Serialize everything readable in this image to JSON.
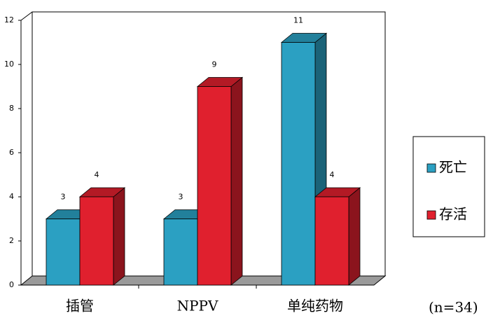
{
  "chart_data": {
    "type": "bar3d",
    "categories": [
      "插管",
      "NPPV",
      "单纯药物"
    ],
    "series": [
      {
        "name": "死亡",
        "color": "#2ba0c2",
        "values": [
          3,
          3,
          11
        ]
      },
      {
        "name": "存活",
        "color": "#e0202e",
        "values": [
          4,
          9,
          4
        ]
      }
    ],
    "ylim": [
      0,
      12
    ],
    "yticks": [
      0,
      2,
      4,
      6,
      8,
      10,
      12
    ],
    "legend": "right",
    "annotation": "(n=34)"
  }
}
